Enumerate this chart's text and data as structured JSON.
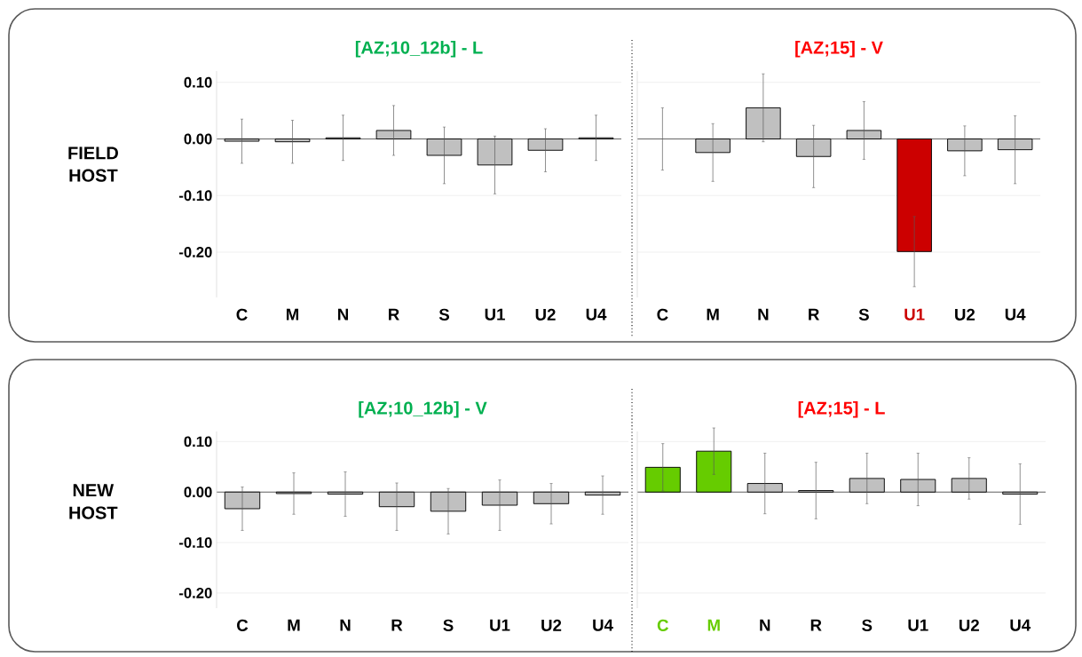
{
  "chart_data": [
    {
      "type": "bar",
      "title": "[AZ;10_12b] - L",
      "annotations": [
        "FIELD HOST"
      ],
      "categories": [
        "C",
        "M",
        "N",
        "R",
        "S",
        "U1",
        "U2",
        "U4"
      ],
      "values": [
        -0.004,
        -0.005,
        0.002,
        0.015,
        -0.029,
        -0.046,
        -0.02,
        0.002
      ],
      "errors": [
        0.039,
        0.038,
        0.04,
        0.044,
        0.05,
        0.051,
        0.038,
        0.04
      ],
      "colors": [
        "#c0c0c0",
        "#c0c0c0",
        "#c0c0c0",
        "#c0c0c0",
        "#c0c0c0",
        "#c0c0c0",
        "#c0c0c0",
        "#c0c0c0"
      ],
      "ylim": [
        -0.28,
        0.12
      ],
      "yticks": [
        {
          "value": 0.1,
          "label": "0.10"
        },
        {
          "value": 0,
          "label": "0.00"
        },
        {
          "value": -0.1,
          "label": "-0.10"
        },
        {
          "value": -0.2,
          "label": "-0.20"
        }
      ],
      "grid": "y"
    },
    {
      "type": "bar",
      "title": "[AZ;15] - V",
      "categories": [
        "C",
        "M",
        "N",
        "R",
        "S",
        "U1",
        "U2",
        "U4"
      ],
      "values": [
        0.0,
        -0.024,
        0.055,
        -0.031,
        0.015,
        -0.199,
        -0.021,
        -0.019
      ],
      "errors": [
        0.055,
        0.051,
        0.06,
        0.055,
        0.051,
        0.062,
        0.044,
        0.06
      ],
      "colors": [
        "#c0c0c0",
        "#c0c0c0",
        "#c0c0c0",
        "#c0c0c0",
        "#c0c0c0",
        "#cc0000",
        "#c0c0c0",
        "#c0c0c0"
      ],
      "ylim": [
        -0.28,
        0.12
      ],
      "yticks": [
        {
          "value": 0.1,
          "label": null
        },
        {
          "value": 0,
          "label": null
        },
        {
          "value": -0.1,
          "label": null
        },
        {
          "value": -0.2,
          "label": null
        }
      ],
      "grid": "y",
      "tick_labels": "x"
    },
    {
      "type": "bar",
      "title": "[AZ;10_12b] - V",
      "annotations": [
        "NEW HOST"
      ],
      "categories": [
        "C",
        "M",
        "N",
        "R",
        "S",
        "U1",
        "U2",
        "U4"
      ],
      "values": [
        -0.033,
        -0.003,
        -0.004,
        -0.029,
        -0.038,
        -0.026,
        -0.023,
        -0.006
      ],
      "errors": [
        0.043,
        0.041,
        0.044,
        0.047,
        0.045,
        0.05,
        0.04,
        0.038
      ],
      "colors": [
        "#c0c0c0",
        "#c0c0c0",
        "#c0c0c0",
        "#c0c0c0",
        "#c0c0c0",
        "#c0c0c0",
        "#c0c0c0",
        "#c0c0c0"
      ],
      "ylim": [
        -0.23,
        0.12
      ],
      "yticks": [
        {
          "value": 0.1,
          "label": "0.10"
        },
        {
          "value": 0,
          "label": "0.00"
        },
        {
          "value": -0.1,
          "label": "-0.10"
        },
        {
          "value": -0.2,
          "label": "-0.20"
        }
      ],
      "grid": "y"
    },
    {
      "type": "bar",
      "title": "[AZ;15] - L",
      "categories": [
        "C",
        "M",
        "N",
        "R",
        "S",
        "U1",
        "U2",
        "U4"
      ],
      "values": [
        0.049,
        0.081,
        0.017,
        0.003,
        0.027,
        0.025,
        0.027,
        -0.004
      ],
      "errors": [
        0.047,
        0.046,
        0.06,
        0.056,
        0.05,
        0.052,
        0.041,
        0.06
      ],
      "colors": [
        "#66cc00",
        "#66cc00",
        "#c0c0c0",
        "#c0c0c0",
        "#c0c0c0",
        "#c0c0c0",
        "#c0c0c0",
        "#c0c0c0"
      ],
      "ylim": [
        -0.23,
        0.12
      ],
      "yticks": [
        {
          "value": 0.1,
          "label": null
        },
        {
          "value": 0,
          "label": null
        },
        {
          "value": -0.1,
          "label": null
        },
        {
          "value": -0.2,
          "label": null
        }
      ],
      "grid": "y",
      "tick_labels": "x"
    }
  ]
}
